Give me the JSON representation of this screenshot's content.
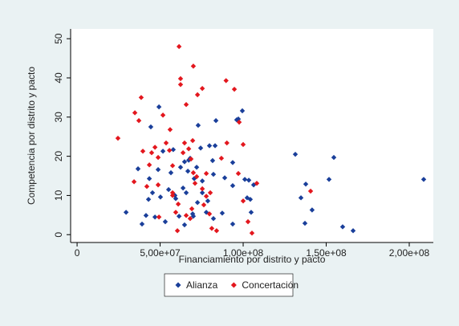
{
  "chart_data": {
    "type": "scatter",
    "x_label": "Financiamiento por distrito y pacto",
    "y_label": "Competencia por distrito y pacto",
    "xlim": [
      -3900000.0,
      214500000.0
    ],
    "ylim": [
      -2,
      52.5
    ],
    "xticks": [
      0,
      {
        "value": 50000000.0,
        "label": "5,00e+07"
      },
      {
        "value": 100000000.0,
        "label": "1,00e+08"
      },
      {
        "value": 150000000.0,
        "label": "1,50e+08"
      },
      {
        "value": 200000000.0,
        "label": "2,00e+08"
      }
    ],
    "yticks": [
      0,
      10,
      20,
      30,
      40,
      50
    ],
    "grid": false,
    "legend": "bottom",
    "series": [
      {
        "name": "Alianza",
        "color": "#1a3f9a",
        "x": [
          29500000.0,
          36700000.0,
          39100000.0,
          41500000.0,
          44400000.0,
          43500000.0,
          43000000.0,
          45400000.0,
          46900000.0,
          49300000.0,
          48800000.0,
          50200000.0,
          51700000.0,
          53100000.0,
          55100000.0,
          56500000.0,
          57900000.0,
          58900000.0,
          59400000.0,
          61400000.0,
          63800000.0,
          62300000.0,
          64700000.0,
          65700000.0,
          64700000.0,
          66700000.0,
          67200000.0,
          68100000.0,
          69600000.0,
          70000000.0,
          70500000.0,
          72000000.0,
          72900000.0,
          72500000.0,
          74400000.0,
          75400000.0,
          75400000.0,
          77800000.0,
          78700000.0,
          79700000.0,
          81600000.0,
          82100000.0,
          82100000.0,
          83100000.0,
          83600000.0,
          87400000.0,
          88900000.0,
          93700000.0,
          96100000.0,
          97100000.0,
          93700000.0,
          99500000.0,
          101000000.0,
          102400000.0,
          103400000.0,
          104300000.0,
          104800000.0,
          106300000.0,
          131400000.0,
          137200000.0,
          141500000.0,
          134800000.0,
          137700000.0,
          151700000.0,
          154600000.0,
          159900000.0,
          166200000.0,
          208700000.0,
          93700000.0
        ],
        "values": [
          5.7,
          16.8,
          2.7,
          4.9,
          27.5,
          14.3,
          9.0,
          10.7,
          4.5,
          32.6,
          16.6,
          9.6,
          21.3,
          3.3,
          11.5,
          15.8,
          21.7,
          10.0,
          9.2,
          4.7,
          11.9,
          17.2,
          18.6,
          10.7,
          2.5,
          16.2,
          19.0,
          19.5,
          5.3,
          4.7,
          14.3,
          17.2,
          27.9,
          8.2,
          22.1,
          10.7,
          13.7,
          5.7,
          8.6,
          22.7,
          18.9,
          15.4,
          4.1,
          22.7,
          29.1,
          5.5,
          14.5,
          12.5,
          29.3,
          29.5,
          18.4,
          31.6,
          14.1,
          9.4,
          13.9,
          9.0,
          5.7,
          12.7,
          20.5,
          2.9,
          6.3,
          9.4,
          12.9,
          14.1,
          19.7,
          2.0,
          1.0,
          14.1,
          2.7
        ]
      },
      {
        "name": "Concertación",
        "color": "#e3171e",
        "x": [
          24600000.0,
          34300000.0,
          34800000.0,
          38600000.0,
          39600000.0,
          37200000.0,
          42000000.0,
          43500000.0,
          44900000.0,
          46900000.0,
          48800000.0,
          49300000.0,
          51700000.0,
          53600000.0,
          55600000.0,
          56000000.0,
          57500000.0,
          57500000.0,
          59400000.0,
          60400000.0,
          60900000.0,
          61400000.0,
          62300000.0,
          62300000.0,
          70000000.0,
          65700000.0,
          68600000.0,
          70000000.0,
          72000000.0,
          72500000.0,
          75400000.0,
          69600000.0,
          64700000.0,
          63800000.0,
          67200000.0,
          71000000.0,
          69100000.0,
          65700000.0,
          68100000.0,
          75400000.0,
          77800000.0,
          79700000.0,
          81100000.0,
          84000000.0,
          86900000.0,
          90200000.0,
          89700000.0,
          94700000.0,
          97600000.0,
          97100000.0,
          100000000.0,
          102900000.0,
          105300000.0,
          108200000.0,
          100000000.0,
          140600000.0,
          77800000.0,
          80200000.0,
          57500000.0,
          48800000.0,
          76300000.0
        ],
        "values": [
          24.6,
          13.5,
          31.1,
          35.0,
          21.3,
          29.1,
          12.3,
          17.8,
          20.9,
          22.3,
          19.7,
          4.5,
          30.5,
          23.4,
          21.5,
          26.8,
          17.6,
          10.0,
          5.7,
          1.0,
          7.8,
          48.0,
          39.8,
          38.3,
          43.0,
          33.2,
          19.3,
          15.8,
          14.8,
          35.7,
          37.3,
          24.0,
          23.4,
          20.9,
          21.9,
          13.1,
          6.6,
          4.9,
          4.1,
          11.7,
          15.6,
          5.3,
          1.6,
          1.0,
          19.5,
          23.4,
          39.3,
          37.1,
          28.7,
          15.6,
          8.6,
          3.3,
          0.4,
          13.1,
          23.0,
          11.1,
          9.8,
          10.7,
          10.7,
          12.7,
          7.6
        ]
      }
    ]
  }
}
